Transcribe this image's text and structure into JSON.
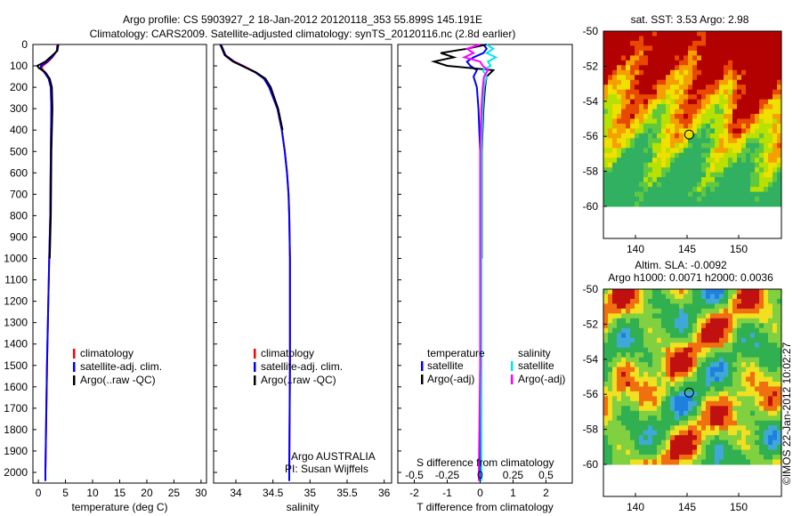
{
  "title": {
    "line1": "Argo profile: CS 5903927_2 18-Jan-2012 20120118_353 55.899S 145.191E",
    "line2": "Climatology: CARS2009. Satellite-adjusted climatology: synTS_20120116.nc (2.8d earlier)"
  },
  "colors": {
    "climatology": "#ff0000",
    "satellite": "#0000ff",
    "argo": "#000000",
    "sal_satellite": "#00e5ee",
    "sal_argo": "#ff00ff"
  },
  "chart_data": [
    {
      "type": "line",
      "id": "temperature",
      "xlabel": "temperature (deg C)",
      "ylabel": "",
      "xlim": [
        -1,
        31
      ],
      "ylim": [
        2050,
        0
      ],
      "xticks": [
        "0",
        "5",
        "10",
        "15",
        "20",
        "25",
        "30"
      ],
      "xtick_values": [
        0,
        5,
        10,
        15,
        20,
        25,
        30
      ],
      "yticks": [
        "0",
        "100",
        "200",
        "300",
        "400",
        "500",
        "600",
        "700",
        "800",
        "900",
        "1000",
        "1100",
        "1200",
        "1300",
        "1400",
        "1500",
        "1600",
        "1700",
        "1800",
        "1900",
        "2000"
      ],
      "legend": [
        "climatology",
        "satellite-adj. clim.",
        "Argo(..raw -QC)"
      ],
      "depth": [
        0,
        30,
        60,
        80,
        100,
        110,
        130,
        160,
        200,
        300,
        500,
        800,
        1000,
        1500,
        2000,
        2040
      ],
      "series": [
        {
          "name": "climatology",
          "values": [
            3.5,
            3.4,
            2.6,
            1.8,
            0.8,
            0.6,
            1.2,
            1.9,
            2.3,
            2.4,
            2.3,
            2.2,
            2.0,
            1.6,
            1.3,
            1.3
          ]
        },
        {
          "name": "satellite-adj. clim.",
          "values": [
            3.6,
            3.4,
            2.5,
            1.6,
            0.5,
            0.4,
            1.1,
            1.9,
            2.3,
            2.4,
            2.3,
            2.2,
            2.0,
            1.6,
            1.3,
            1.3
          ]
        },
        {
          "name": "Argo(..raw -QC)",
          "values": [
            3.7,
            3.5,
            2.2,
            1.3,
            -0.2,
            0.1,
            1.3,
            2.1,
            2.5,
            2.6,
            2.4,
            2.3,
            2.1,
            null,
            null,
            null
          ]
        }
      ]
    },
    {
      "type": "line",
      "id": "salinity",
      "xlabel": "salinity",
      "xlim": [
        33.7,
        36.1
      ],
      "ylim": [
        2050,
        0
      ],
      "xticks": [
        "34",
        "34.5",
        "35",
        "35.5",
        "36"
      ],
      "xtick_values": [
        34,
        34.5,
        35,
        35.5,
        36
      ],
      "legend": [
        "climatology",
        "satellite-adj. clim.",
        "Argo(..raw -QC)"
      ],
      "annotation": [
        "Argo AUSTRALIA",
        "PI: Susan Wijffels"
      ],
      "depth": [
        0,
        50,
        80,
        100,
        130,
        160,
        200,
        300,
        400,
        500,
        600,
        700,
        800,
        1000,
        1500,
        2000,
        2040
      ],
      "series": [
        {
          "name": "climatology",
          "values": [
            33.8,
            33.86,
            33.98,
            34.1,
            34.27,
            34.38,
            34.45,
            34.56,
            34.62,
            34.66,
            34.69,
            34.71,
            34.72,
            34.73,
            34.73,
            34.72,
            34.72
          ]
        },
        {
          "name": "satellite-adj. clim.",
          "values": [
            33.8,
            33.86,
            33.97,
            34.09,
            34.26,
            34.38,
            34.45,
            34.56,
            34.62,
            34.66,
            34.69,
            34.71,
            34.72,
            34.73,
            34.73,
            34.72,
            34.72
          ]
        },
        {
          "name": "Argo(..raw -QC)",
          "values": [
            33.79,
            33.85,
            33.96,
            34.08,
            34.27,
            34.4,
            34.47,
            34.57,
            34.63,
            null,
            null,
            null,
            null,
            null,
            null,
            null,
            null
          ]
        }
      ]
    },
    {
      "type": "line",
      "id": "difference",
      "xlabel": "T difference from climatology",
      "x2label": "S difference from climatology",
      "xlim": [
        -2.5,
        2.8
      ],
      "xticks": [
        "-2",
        "-1",
        "0",
        "1",
        "2"
      ],
      "xtick_values": [
        -2,
        -1,
        0,
        1,
        2
      ],
      "x2ticks": [
        "-0.5",
        "-0.25",
        "0",
        "0.25",
        "0.5"
      ],
      "x2tick_values": [
        -0.5,
        -0.25,
        0,
        0.25,
        0.5
      ],
      "legend_titles": [
        "temperature",
        "salinity"
      ],
      "legend": [
        "satellite",
        "Argo(-adj)",
        "satellite",
        "Argo(-adj)"
      ],
      "depth": [
        0,
        20,
        40,
        60,
        80,
        100,
        120,
        150,
        200,
        300,
        500,
        1000,
        1500,
        2000,
        2040
      ],
      "series": [
        {
          "name": "temperature satellite",
          "values": [
            0.1,
            0.2,
            0.1,
            -0.2,
            -0.4,
            -0.3,
            -0.1,
            -0.2,
            -0.1,
            -0.05,
            0,
            0,
            0,
            0,
            0
          ]
        },
        {
          "name": "temperature Argo(-adj)",
          "values": [
            0.2,
            -0.4,
            -1.2,
            -0.8,
            -1.4,
            -1.0,
            0.4,
            0.2,
            0.15,
            0.1,
            0.05,
            0.05,
            null,
            null,
            null
          ]
        },
        {
          "name": "salinity satellite",
          "values": [
            0.05,
            0.1,
            0.05,
            0.12,
            0.06,
            0.08,
            0.02,
            0.05,
            0.03,
            0.02,
            0.01,
            0.01,
            0.01,
            0.01,
            0.01
          ]
        },
        {
          "name": "salinity Argo(-adj)",
          "values": [
            0.0,
            -0.1,
            -0.05,
            -0.12,
            0,
            0.02,
            0.06,
            0.03,
            0.02,
            0.01,
            0,
            0,
            0,
            -0.01,
            -0.01
          ]
        }
      ]
    },
    {
      "type": "heatmap",
      "id": "sst-map",
      "title": "sat. SST: 3.53 Argo: 2.98",
      "xticks": [
        "140",
        "145",
        "150"
      ],
      "yticks": [
        "-50",
        "-52",
        "-54",
        "-56",
        "-58",
        "-60"
      ],
      "marker": {
        "lon": 145.2,
        "lat": -55.9
      }
    },
    {
      "type": "heatmap",
      "id": "sla-map",
      "title1": "Altim. SLA: -0.0092",
      "title2": "Argo h1000: 0.0071 h2000: 0.0036",
      "xticks": [
        "140",
        "145",
        "150"
      ],
      "yticks": [
        "-50",
        "-52",
        "-54",
        "-56",
        "-58",
        "-60"
      ],
      "marker": {
        "lon": 145.2,
        "lat": -55.9
      }
    }
  ],
  "credit": "©IMOS 22-Jan-2012 10:02:27"
}
